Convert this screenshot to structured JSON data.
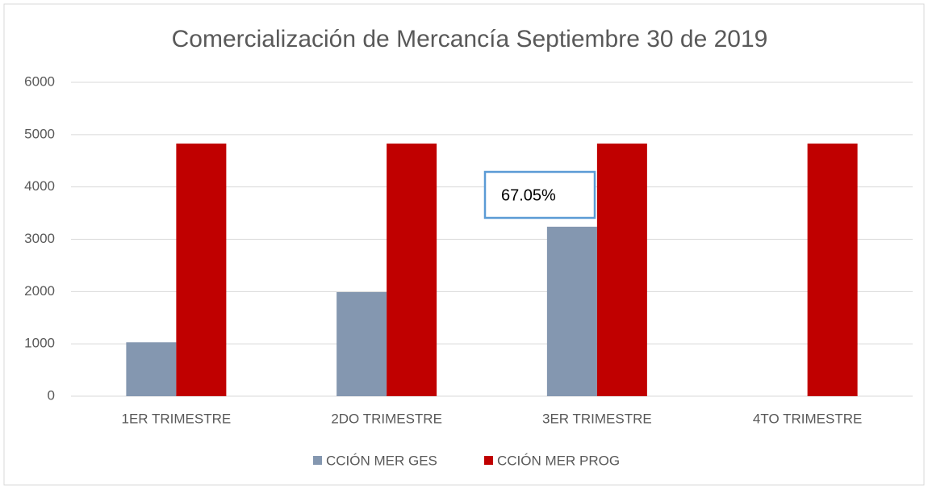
{
  "chart_data": {
    "type": "bar",
    "title": "Comercialización  de Mercancía Septiembre 30 de 2019",
    "categories": [
      "1ER TRIMESTRE",
      "2DO TRIMESTRE",
      "3ER TRIMESTRE",
      "4TO TRIMESTRE"
    ],
    "series": [
      {
        "name": "CCIÓN MER GES",
        "color": "#8497b0",
        "values": [
          1030,
          1990,
          3240,
          null
        ]
      },
      {
        "name": "CCIÓN MER PROG",
        "color": "#c00000",
        "values": [
          4830,
          4830,
          4830,
          4830
        ]
      }
    ],
    "annotation": "67.05%",
    "ylim": [
      0,
      6000
    ],
    "yticks": [
      0,
      1000,
      2000,
      3000,
      4000,
      5000,
      6000
    ],
    "grid": true,
    "legend": "bottom"
  }
}
